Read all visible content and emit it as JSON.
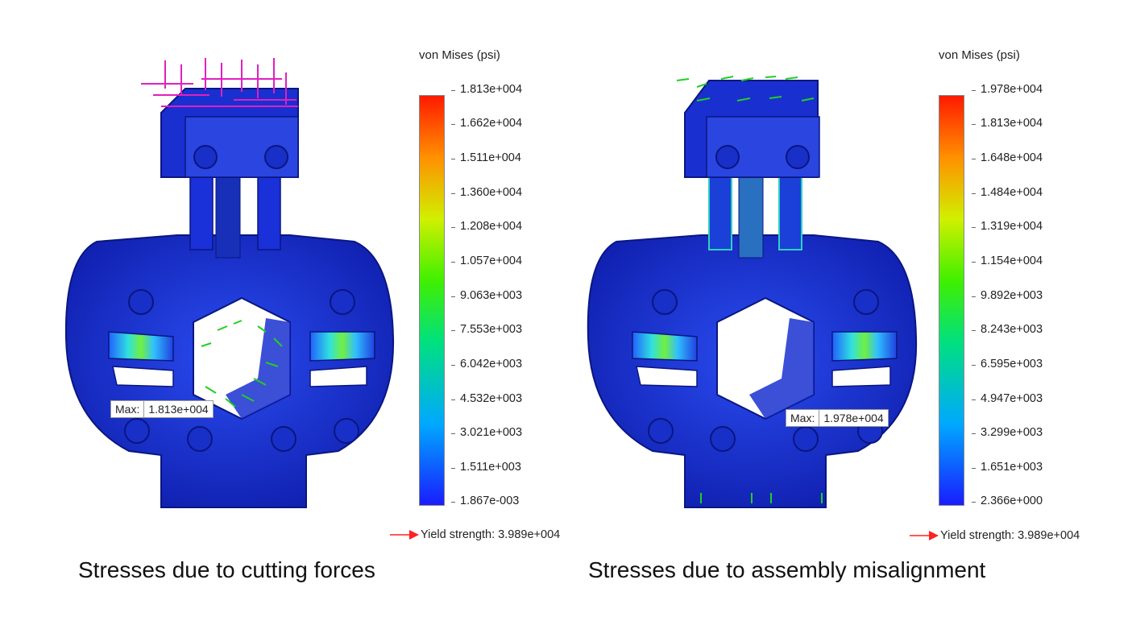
{
  "left": {
    "scale_title": "von Mises (psi)",
    "ticks": [
      "1.813e+004",
      "1.662e+004",
      "1.511e+004",
      "1.360e+004",
      "1.208e+004",
      "1.057e+004",
      "9.063e+003",
      "7.553e+003",
      "6.042e+003",
      "4.532e+003",
      "3.021e+003",
      "1.511e+003",
      "1.867e-003"
    ],
    "max_label": "Max:",
    "max_value": "1.813e+004",
    "yield_text": "Yield strength: 3.989e+004",
    "caption": "Stresses due to cutting forces"
  },
  "right": {
    "scale_title": "von Mises (psi)",
    "ticks": [
      "1.978e+004",
      "1.813e+004",
      "1.648e+004",
      "1.484e+004",
      "1.319e+004",
      "1.154e+004",
      "9.892e+003",
      "8.243e+003",
      "6.595e+003",
      "4.947e+003",
      "3.299e+003",
      "1.651e+003",
      "2.366e+000"
    ],
    "max_label": "Max:",
    "max_value": "1.978e+004",
    "yield_text": "Yield strength: 3.989e+004",
    "caption": "Stresses due to assembly misalignment"
  },
  "colors": {
    "part_blue": "#1a2fd0",
    "colorbar": [
      "#1a1aff",
      "#00c8ff",
      "#00e060",
      "#c8f000",
      "#ff9a00",
      "#ff1a00"
    ],
    "load_arrows_cutting": "#e020c0",
    "fixture_arrows": "#20d020",
    "yield_arrow": "#ff2020"
  }
}
